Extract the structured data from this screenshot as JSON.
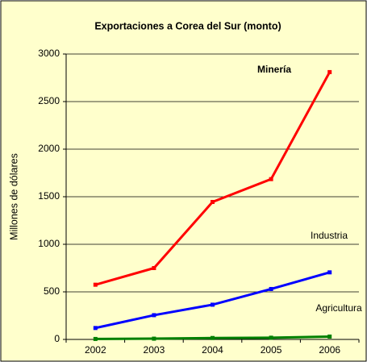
{
  "chart_data": {
    "type": "line",
    "title": "Exportaciones a Corea del Sur (monto)",
    "y_label": "Millones de dólares",
    "categories": [
      "2002",
      "2003",
      "2004",
      "2005",
      "2006"
    ],
    "series": [
      {
        "name": "Minería",
        "color": "#ff0000",
        "values": [
          575,
          750,
          1445,
          1685,
          2810
        ]
      },
      {
        "name": "Industria",
        "color": "#0000ff",
        "values": [
          120,
          255,
          365,
          530,
          705
        ]
      },
      {
        "name": "Agricultura",
        "color": "#008000",
        "values": [
          5,
          8,
          15,
          18,
          30
        ]
      }
    ],
    "ylim": [
      0,
      3000
    ],
    "yticks": [
      0,
      500,
      1000,
      1500,
      2000,
      2500,
      3000
    ],
    "grid": true
  }
}
